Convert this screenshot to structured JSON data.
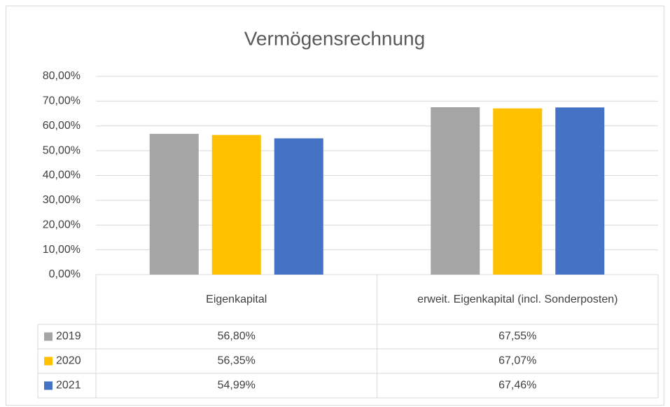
{
  "chart_data": {
    "type": "bar",
    "title": "Vermögensrechnung",
    "categories": [
      "Eigenkapital",
      "erweit. Eigenkapital (incl. Sonderposten)"
    ],
    "series": [
      {
        "name": "2019",
        "color": "#a5a5a5",
        "values": [
          56.8,
          67.55
        ],
        "value_labels": [
          "56,80%",
          "67,55%"
        ]
      },
      {
        "name": "2020",
        "color": "#ffc000",
        "values": [
          56.35,
          67.07
        ],
        "value_labels": [
          "56,35%",
          "67,07%"
        ]
      },
      {
        "name": "2021",
        "color": "#4472c4",
        "values": [
          54.99,
          67.46
        ],
        "value_labels": [
          "54,99%",
          "67,46%"
        ]
      }
    ],
    "ylim": [
      0,
      80
    ],
    "yticks": [
      {
        "value": 0,
        "label": "0,00%"
      },
      {
        "value": 10,
        "label": "10,00%"
      },
      {
        "value": 20,
        "label": "20,00%"
      },
      {
        "value": 30,
        "label": "30,00%"
      },
      {
        "value": 40,
        "label": "40,00%"
      },
      {
        "value": 50,
        "label": "50,00%"
      },
      {
        "value": 60,
        "label": "60,00%"
      },
      {
        "value": 70,
        "label": "70,00%"
      },
      {
        "value": 80,
        "label": "80,00%"
      }
    ],
    "grid": true
  }
}
